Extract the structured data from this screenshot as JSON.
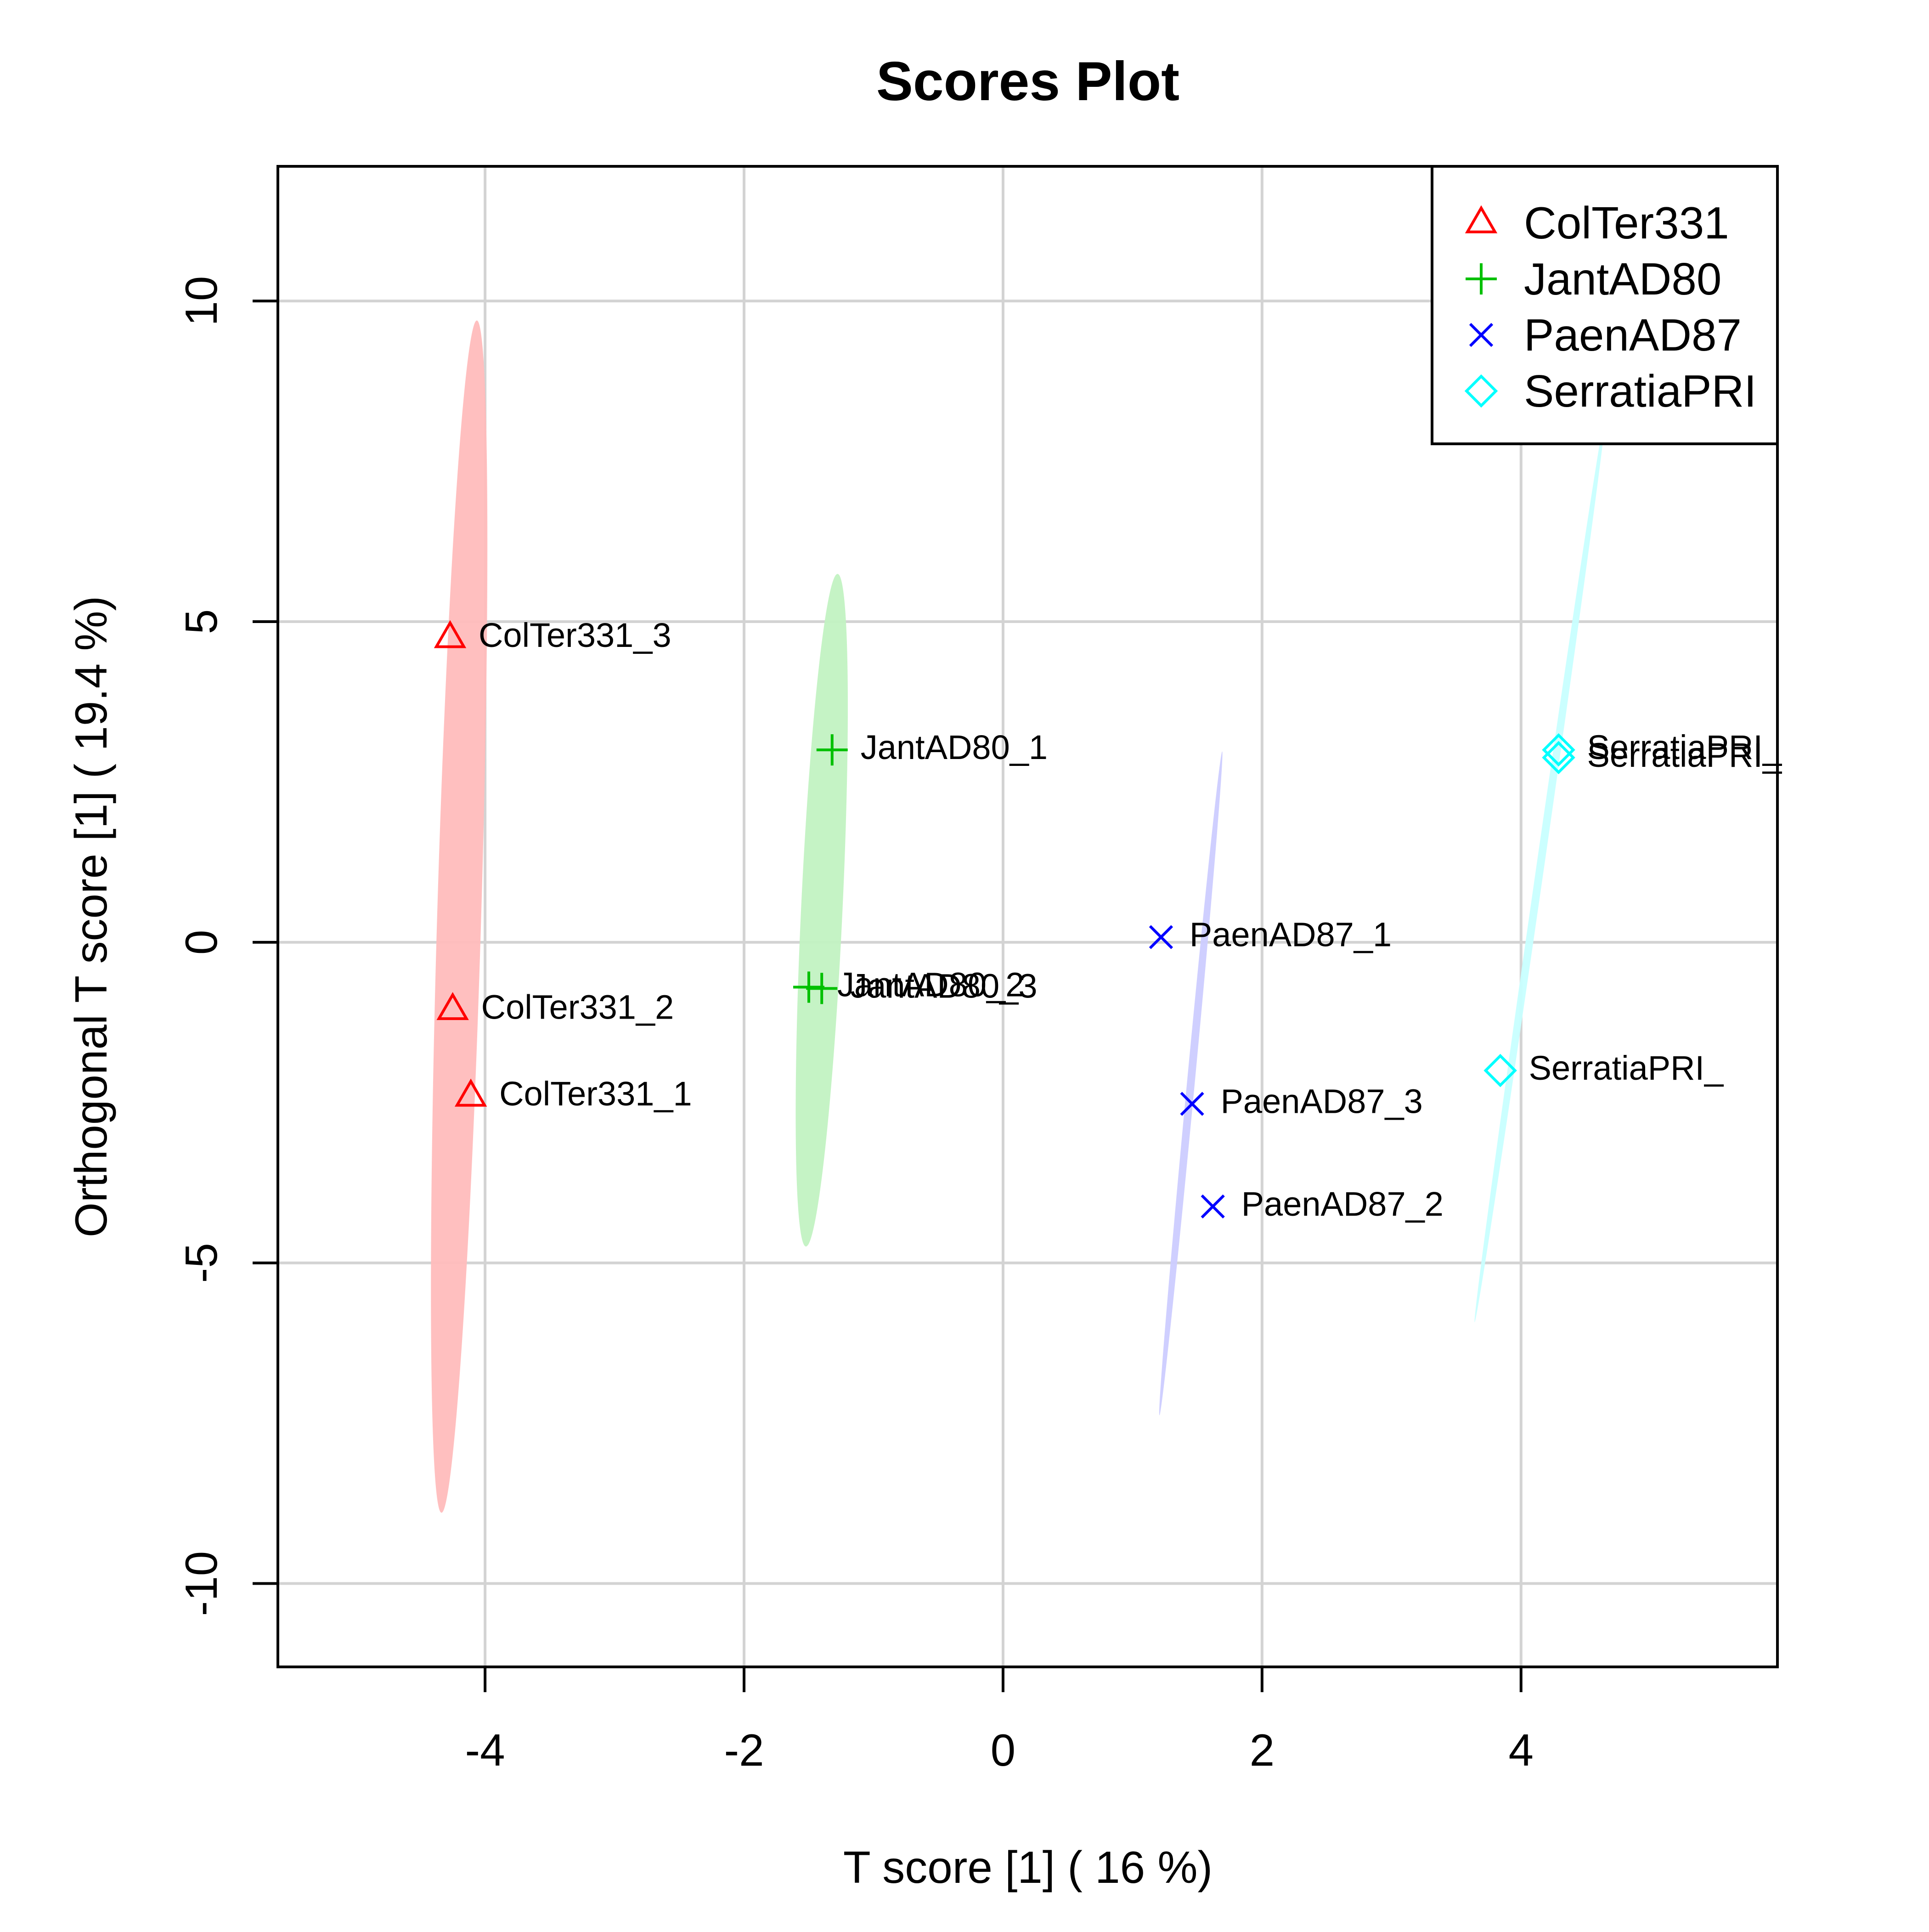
{
  "chart_data": {
    "type": "scatter",
    "title": "Scores Plot",
    "xlabel": "T score [1] ( 16 %)",
    "ylabel": "Orthogonal T score [1] ( 19.4 %)",
    "xlim": [
      -5.6,
      5.98
    ],
    "ylim": [
      -11.3,
      12.1
    ],
    "xticks": [
      -4,
      -2,
      0,
      2,
      4
    ],
    "yticks": [
      -10,
      -5,
      0,
      5,
      10
    ],
    "grid": true,
    "legend_position": "top-right",
    "series": [
      {
        "name": "ColTer331",
        "color": "#ff0000",
        "marker": "triangle",
        "ellipse_color": "#ffbcbc",
        "ellipse": {
          "cx": -4.2,
          "cy": 0.4,
          "rx": 0.17,
          "ry": 9.3,
          "angle": -88.3
        },
        "points": [
          {
            "label": "ColTer331_3",
            "x": -4.27,
            "y": 4.75
          },
          {
            "label": "ColTer331_2",
            "x": -4.25,
            "y": -1.05
          },
          {
            "label": "ColTer331_1",
            "x": -4.11,
            "y": -2.4
          }
        ]
      },
      {
        "name": "JantAD80",
        "color": "#00c000",
        "marker": "plus",
        "ellipse_color": "#c2f2c2",
        "ellipse": {
          "cx": -1.4,
          "cy": 0.5,
          "rx": 0.16,
          "ry": 5.25,
          "angle": -87.3
        },
        "points": [
          {
            "label": "JantAD80_1",
            "x": -1.32,
            "y": 3.0
          },
          {
            "label": "JantAD80_2",
            "x": -1.5,
            "y": -0.7
          },
          {
            "label": "JantAD80_3",
            "x": -1.4,
            "y": -0.72
          }
        ]
      },
      {
        "name": "PaenAD87",
        "color": "#0000ff",
        "marker": "cross",
        "ellipse_color": "#ccccff",
        "ellipse": {
          "cx": 1.45,
          "cy": -2.2,
          "rx": 0.03,
          "ry": 5.2,
          "angle": -84.6
        },
        "points": [
          {
            "label": "PaenAD87_1",
            "x": 1.22,
            "y": 0.08
          },
          {
            "label": "PaenAD87_3",
            "x": 1.46,
            "y": -2.52
          },
          {
            "label": "PaenAD87_2",
            "x": 1.62,
            "y": -4.12
          }
        ]
      },
      {
        "name": "SerratiaPRI",
        "color": "#00ffff",
        "marker": "diamond",
        "ellipse_color": "#c8ffff",
        "ellipse": {
          "cx": 4.15,
          "cy": 1.2,
          "rx": 0.03,
          "ry": 7.2,
          "angle": -81.8
        },
        "points": [
          {
            "label": "SerratiaPRI_",
            "x": 4.29,
            "y": 3.0
          },
          {
            "label": "SerratiaPRI_",
            "x": 4.29,
            "y": 2.88
          },
          {
            "label": "SerratiaPRI_",
            "x": 3.84,
            "y": -2.0
          }
        ]
      }
    ]
  }
}
